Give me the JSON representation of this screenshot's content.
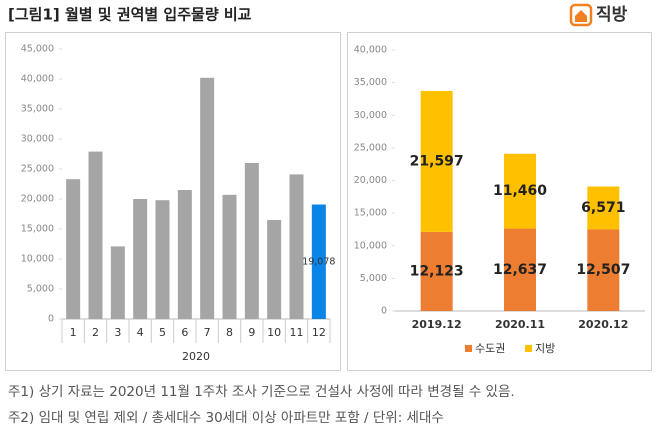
{
  "title": "[그림1] 월별 및 권역별 입주물량 비교",
  "logo": "직방",
  "chart_data": [
    {
      "type": "bar",
      "categories": [
        "1",
        "2",
        "3",
        "4",
        "5",
        "6",
        "7",
        "8",
        "9",
        "10",
        "11",
        "12"
      ],
      "values": [
        23300,
        27900,
        12100,
        20000,
        19800,
        21500,
        40200,
        20700,
        26000,
        16500,
        24100,
        19078
      ],
      "value_labels": [
        null,
        null,
        null,
        null,
        null,
        null,
        null,
        null,
        null,
        null,
        null,
        "19,078"
      ],
      "colors": [
        "#a5a5a5",
        "#a5a5a5",
        "#a5a5a5",
        "#a5a5a5",
        "#a5a5a5",
        "#a5a5a5",
        "#a5a5a5",
        "#a5a5a5",
        "#a5a5a5",
        "#a5a5a5",
        "#a5a5a5",
        "#0b84e8"
      ],
      "x_label": "2020",
      "ylim": [
        0,
        45000
      ],
      "yticks": [
        0,
        {
          "value": 5000,
          "label": "5,000"
        },
        {
          "value": 10000,
          "label": "10,000"
        },
        {
          "value": 15000,
          "label": "15,000"
        },
        {
          "value": 20000,
          "label": "20,000"
        },
        {
          "value": 25000,
          "label": "25,000"
        },
        {
          "value": 30000,
          "label": "30,000"
        },
        {
          "value": 35000,
          "label": "35,000"
        },
        {
          "value": 40000,
          "label": "40,000"
        },
        {
          "value": 45000,
          "label": "45,000"
        }
      ]
    },
    {
      "type": "stacked-bar",
      "categories": [
        "2019.12",
        "2020.11",
        "2020.12"
      ],
      "series": [
        {
          "name": "수도권",
          "color": "#ed7d31",
          "values": [
            12123,
            12637,
            12507
          ],
          "value_labels": [
            "12,123",
            "12,637",
            "12,507"
          ]
        },
        {
          "name": "지방",
          "color": "#ffc000",
          "values": [
            21597,
            11460,
            6571
          ],
          "value_labels": [
            "21,597",
            "11,460",
            "6,571"
          ]
        }
      ],
      "ylim": [
        0,
        40000
      ],
      "yticks": [
        0,
        {
          "value": 5000,
          "label": "5,000"
        },
        {
          "value": 10000,
          "label": "10,000"
        },
        {
          "value": 15000,
          "label": "15,000"
        },
        {
          "value": 20000,
          "label": "20,000"
        },
        {
          "value": 25000,
          "label": "25,000"
        },
        {
          "value": 30000,
          "label": "30,000"
        },
        {
          "value": 35000,
          "label": "35,000"
        },
        {
          "value": 40000,
          "label": "40,000"
        }
      ],
      "legend": "bottom"
    }
  ],
  "notes": [
    "주1) 상기 자료는 2020년 11월 1주차 조사 기준으로 건설사 사정에 따라 변경될 수 있음.",
    "주2) 임대 및 연립 제외 / 총세대수 30세대 이상 아파트만 포함 / 단위: 세대수"
  ]
}
